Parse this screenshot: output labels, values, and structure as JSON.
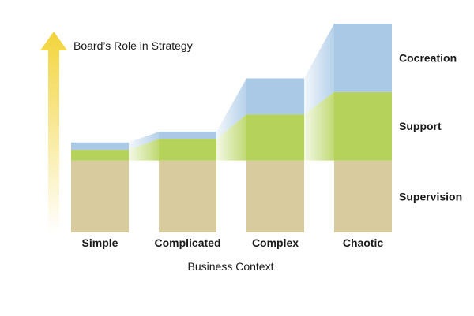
{
  "chart_data": {
    "type": "bar",
    "stacked": true,
    "y_axis_title": "Board’s Role in Strategy",
    "x_axis_title": "Business Context",
    "categories": [
      "Simple",
      "Complicated",
      "Complex",
      "Chaotic"
    ],
    "series": [
      {
        "name": "Supervision",
        "color": "#d8cc9e",
        "values": [
          1.0,
          1.0,
          1.0,
          1.0
        ]
      },
      {
        "name": "Support",
        "color": "#b5d35a",
        "values": [
          0.15,
          0.3,
          0.64,
          0.95
        ]
      },
      {
        "name": "Cocreation",
        "color": "#a9c9e6",
        "values": [
          0.1,
          0.1,
          0.5,
          0.95
        ]
      }
    ],
    "layer_labels": [
      "Cocreation",
      "Support",
      "Supervision"
    ],
    "arrow_color": "#f2d43a",
    "ylim": [
      0,
      2.9
    ],
    "grid": false,
    "legend": "right-of-last-bar"
  }
}
